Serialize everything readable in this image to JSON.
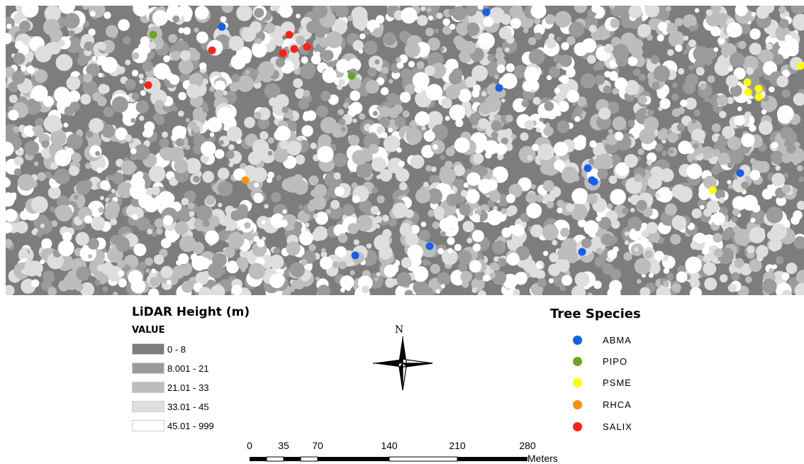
{
  "map": {
    "species_points": [
      {
        "species": "ABMA"
      },
      {
        "species": "ABMA"
      },
      {
        "species": "ABMA"
      },
      {
        "species": "ABMA"
      },
      {
        "species": "ABMA"
      },
      {
        "species": "ABMA"
      },
      {
        "species": "ABMA"
      },
      {
        "species": "ABMA"
      },
      {
        "species": "ABMA"
      },
      {
        "species": "ABMA"
      },
      {
        "species": "PIPO"
      },
      {
        "species": "PIPO"
      },
      {
        "species": "PSME"
      },
      {
        "species": "PSME"
      },
      {
        "species": "PSME"
      },
      {
        "species": "PSME"
      },
      {
        "species": "PSME"
      },
      {
        "species": "PSME"
      },
      {
        "species": "RHCA"
      },
      {
        "species": "SALIX"
      },
      {
        "species": "SALIX"
      },
      {
        "species": "SALIX"
      },
      {
        "species": "SALIX"
      },
      {
        "species": "SALIX"
      },
      {
        "species": "SALIX"
      }
    ]
  },
  "height_legend": {
    "title": "LiDAR Height (m)",
    "subtitle": "VALUE",
    "classes": [
      {
        "label": "0 - 8",
        "color": "#7d7d7d"
      },
      {
        "label": "8.001 - 21",
        "color": "#9b9b9b"
      },
      {
        "label": "21.01 - 33",
        "color": "#bdbdbd"
      },
      {
        "label": "33.01 - 45",
        "color": "#dedede"
      },
      {
        "label": "45.01 - 999",
        "color": "#ffffff"
      }
    ]
  },
  "species_legend": {
    "title": "Tree Species",
    "items": [
      {
        "label": "ABMA",
        "color": "#1560e8"
      },
      {
        "label": "PIPO",
        "color": "#6aa61e"
      },
      {
        "label": "PSME",
        "color": "#ffff00"
      },
      {
        "label": "RHCA",
        "color": "#f5920c"
      },
      {
        "label": "SALIX",
        "color": "#ff2214"
      }
    ]
  },
  "north_arrow": {
    "label": "N"
  },
  "scale_bar": {
    "ticks": [
      "0",
      "35",
      "70",
      "140",
      "210",
      "280"
    ],
    "unit": "Meters"
  }
}
